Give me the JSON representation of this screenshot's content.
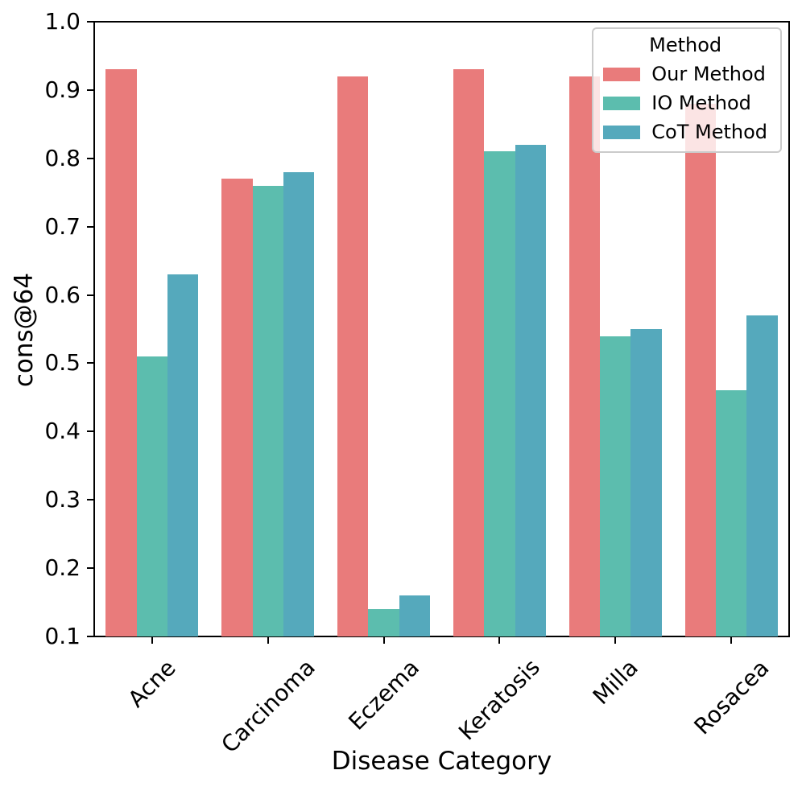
{
  "figure": {
    "background": "#ffffff",
    "text_color": "#000000",
    "spine_color": "#000000"
  },
  "chart_data": {
    "type": "bar",
    "title": "",
    "xlabel": "Disease Category",
    "ylabel": "cons@64",
    "categories": [
      "Acne",
      "Carcinoma",
      "Eczema",
      "Keratosis",
      "Milla",
      "Rosacea"
    ],
    "series": [
      {
        "name": "Our Method",
        "color": "#E97B7B",
        "values": [
          0.93,
          0.77,
          0.92,
          0.93,
          0.92,
          0.88
        ]
      },
      {
        "name": "IO Method",
        "color": "#5CBDAE",
        "values": [
          0.51,
          0.76,
          0.14,
          0.81,
          0.54,
          0.46
        ]
      },
      {
        "name": "CoT Method",
        "color": "#55A9BC",
        "values": [
          0.63,
          0.78,
          0.16,
          0.82,
          0.55,
          0.57
        ]
      }
    ],
    "ylim": [
      0.1,
      1.0
    ],
    "ytick_labels": [
      "0.1",
      "0.2",
      "0.3",
      "0.4",
      "0.5",
      "0.6",
      "0.7",
      "0.8",
      "0.9",
      "1.0"
    ],
    "xtick_rotation_deg": 45,
    "legend": {
      "title": "Method",
      "position": "upper right"
    },
    "grid": false,
    "bar_group_fraction": 0.8
  }
}
